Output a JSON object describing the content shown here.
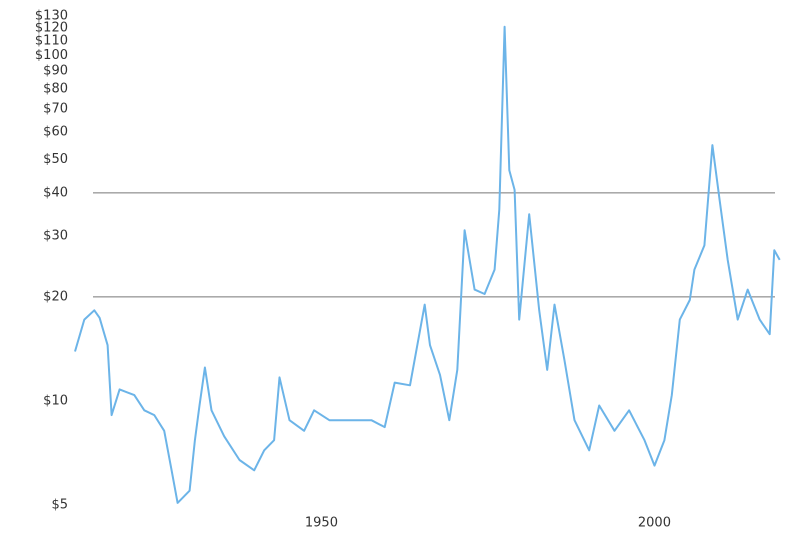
{
  "chart_data": {
    "type": "line",
    "log_scale": true,
    "grid": false,
    "x": [
      1913.0,
      1914.4,
      1915.9,
      1916.7,
      1917.9,
      1918.5,
      1919.7,
      1921.9,
      1923.4,
      1924.9,
      1926.4,
      1927.5,
      1928.4,
      1930.2,
      1931.0,
      1931.7,
      1932.5,
      1933.5,
      1935.4,
      1937.7,
      1939.9,
      1941.4,
      1942.9,
      1943.7,
      1945.2,
      1947.4,
      1948.9,
      1951.2,
      1953.5,
      1955.7,
      1957.5,
      1959.5,
      1961.0,
      1963.3,
      1964.8,
      1965.5,
      1966.3,
      1967.8,
      1969.2,
      1970.4,
      1971.5,
      1973.0,
      1974.5,
      1976.0,
      1976.7,
      1977.5,
      1978.2,
      1979.0,
      1979.7,
      1981.2,
      1982.7,
      1983.9,
      1985.0,
      1986.5,
      1988.0,
      1990.2,
      1991.7,
      1994.0,
      1996.2,
      1998.5,
      2000.0,
      2001.5,
      2002.6,
      2003.8,
      2005.3,
      2006.0,
      2007.5,
      2008.7,
      2009.8,
      2011.0,
      2012.5,
      2014.0,
      2015.8,
      2017.3,
      2018.0,
      2018.8
    ],
    "series": [
      {
        "color": "#6cb4e8",
        "values": [
          13.9,
          17.2,
          18.3,
          17.4,
          14.5,
          9.1,
          10.8,
          10.4,
          9.4,
          9.1,
          8.2,
          6.3,
          5.07,
          5.5,
          7.7,
          9.7,
          12.5,
          9.4,
          7.9,
          6.75,
          6.3,
          7.2,
          7.7,
          11.7,
          8.8,
          8.2,
          9.4,
          8.8,
          8.8,
          8.8,
          8.8,
          8.4,
          11.3,
          11.1,
          16.0,
          19.0,
          14.5,
          11.9,
          8.8,
          12.3,
          31.2,
          21.0,
          20.4,
          24.0,
          35.8,
          121,
          46.5,
          40.8,
          17.2,
          34.7,
          18.3,
          12.3,
          19.0,
          13.1,
          8.8,
          7.2,
          9.7,
          8.2,
          9.4,
          7.7,
          6.5,
          7.7,
          10.4,
          17.2,
          19.6,
          24.0,
          28.2,
          55,
          38.0,
          25.6,
          17.2,
          21.0,
          17.2,
          15.6,
          27.3,
          25.6
        ]
      }
    ],
    "reference_lines": [
      40,
      20
    ],
    "xlim": [
      1913,
      2019
    ],
    "xticks": [
      1950,
      2000
    ],
    "ylim": [
      5,
      130
    ],
    "yticks": [
      {
        "value": 5,
        "label": "$5"
      },
      {
        "value": 10,
        "label": "$10"
      },
      {
        "value": 20,
        "label": "$20"
      },
      {
        "value": 30,
        "label": "$30"
      },
      {
        "value": 40,
        "label": "$40"
      },
      {
        "value": 50,
        "label": "$50"
      },
      {
        "value": 60,
        "label": "$60"
      },
      {
        "value": 70,
        "label": "$70"
      },
      {
        "value": 80,
        "label": "$80"
      },
      {
        "value": 90,
        "label": "$90"
      },
      {
        "value": 100,
        "label": "$100"
      },
      {
        "value": 110,
        "label": "$110"
      },
      {
        "value": 120,
        "label": "$120"
      },
      {
        "value": 130,
        "label": "$130"
      }
    ]
  }
}
